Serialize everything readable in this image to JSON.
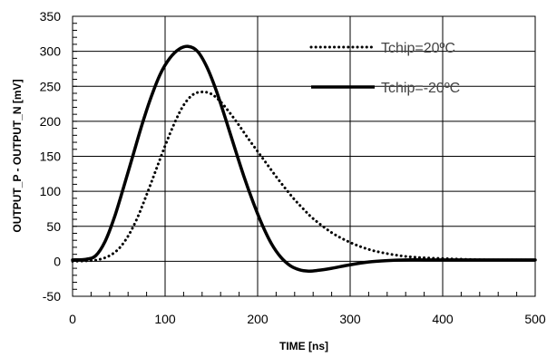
{
  "chart_data": {
    "type": "line",
    "xlabel": "TIME [ns]",
    "ylabel": "OUTPUT_P - OUTPUT_N [mV]",
    "xlim": [
      0,
      500
    ],
    "ylim": [
      -50,
      350
    ],
    "x_ticks": [
      0,
      100,
      200,
      300,
      400,
      500
    ],
    "y_ticks": [
      -50,
      0,
      50,
      100,
      150,
      200,
      250,
      300,
      350
    ],
    "x_tick_labels": [
      "0",
      "100",
      "200",
      "300",
      "400",
      "500"
    ],
    "y_tick_labels": [
      "-50",
      "0",
      "50",
      "100",
      "150",
      "200",
      "250",
      "300",
      "350"
    ],
    "grid": true,
    "legend_position": "top-right",
    "series": [
      {
        "name": "Tchip=20ºC",
        "style": "dotted",
        "color": "#000000",
        "x": [
          0,
          20,
          30,
          40,
          50,
          60,
          70,
          80,
          90,
          100,
          110,
          120,
          130,
          140,
          150,
          160,
          170,
          180,
          190,
          200,
          210,
          220,
          230,
          240,
          250,
          260,
          280,
          300,
          320,
          340,
          360,
          380,
          400,
          420,
          450,
          500
        ],
        "y": [
          0,
          1,
          3,
          8,
          18,
          36,
          62,
          95,
          130,
          165,
          197,
          223,
          238,
          242,
          239,
          228,
          212,
          194,
          175,
          157,
          139,
          121,
          104,
          88,
          74,
          61,
          41,
          27,
          17,
          11,
          7,
          5,
          4,
          3,
          2,
          2
        ]
      },
      {
        "name": "Tchip=-20ºC",
        "style": "solid",
        "color": "#000000",
        "x": [
          0,
          15,
          25,
          35,
          45,
          55,
          65,
          75,
          85,
          95,
          105,
          115,
          125,
          135,
          145,
          155,
          165,
          175,
          185,
          195,
          205,
          215,
          225,
          235,
          245,
          255,
          265,
          280,
          300,
          320,
          340,
          360,
          380,
          400,
          450,
          500
        ],
        "y": [
          2,
          3,
          8,
          28,
          62,
          105,
          150,
          195,
          235,
          268,
          290,
          303,
          307,
          300,
          278,
          245,
          205,
          163,
          122,
          85,
          52,
          25,
          6,
          -6,
          -12,
          -14,
          -13,
          -10,
          -5,
          -1,
          1,
          2,
          2,
          2,
          2,
          2
        ]
      }
    ]
  }
}
